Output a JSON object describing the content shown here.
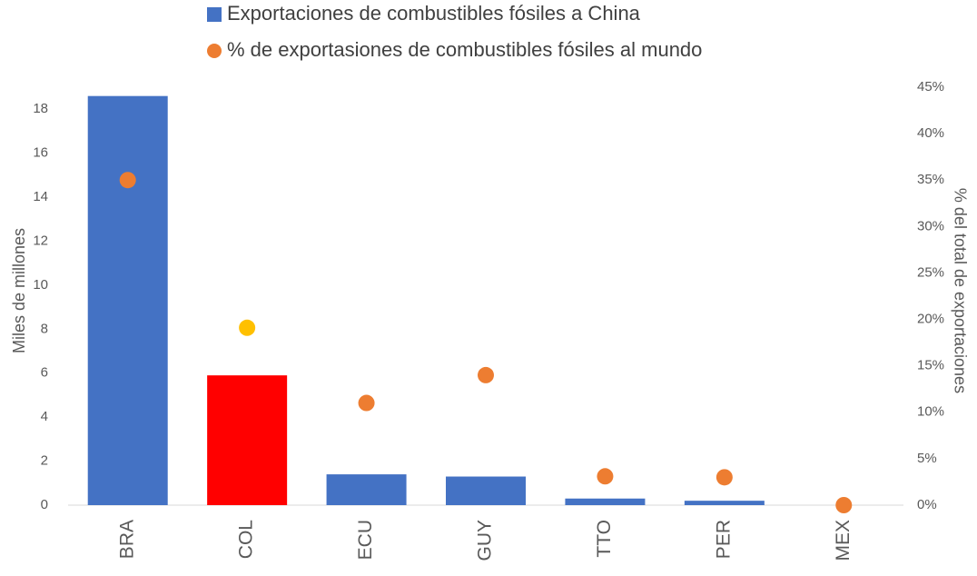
{
  "chart_data": {
    "type": "bar",
    "categories": [
      "BRA",
      "COL",
      "ECU",
      "GUY",
      "TTO",
      "PER",
      "MEX"
    ],
    "series": [
      {
        "name": "Exportaciones de combustibles fósiles a China",
        "type": "bar",
        "color": "#4472c4",
        "colors": [
          "#4472c4",
          "#ff0000",
          "#4472c4",
          "#4472c4",
          "#4472c4",
          "#4472c4",
          "#4472c4"
        ],
        "values": [
          18.6,
          5.9,
          1.4,
          1.3,
          0.3,
          0.2,
          0
        ]
      },
      {
        "name": "% de exportasiones de combustibles fósiles al mundo",
        "type": "scatter",
        "axis": "y2",
        "color": "#ed7d31",
        "colors": [
          "#ed7d31",
          "#ffc000",
          "#ed7d31",
          "#ed7d31",
          "#ed7d31",
          "#ed7d31",
          "#ed7d31"
        ],
        "values": [
          35,
          19.1,
          11,
          14,
          3.1,
          3,
          0
        ]
      }
    ],
    "ylabel": "Miles de millones",
    "y2label": "% del total de exportaciones",
    "ylim": [
      0,
      19
    ],
    "yticks": [
      0,
      2,
      4,
      6,
      8,
      10,
      12,
      14,
      16,
      18
    ],
    "y2lim": [
      0,
      45
    ],
    "y2ticks": [
      {
        "value": 0,
        "label": "0%"
      },
      {
        "value": 5,
        "label": "5%"
      },
      {
        "value": 10,
        "label": "10%"
      },
      {
        "value": 15,
        "label": "15%"
      },
      {
        "value": 20,
        "label": "20%"
      },
      {
        "value": 25,
        "label": "25%"
      },
      {
        "value": 30,
        "label": "30%"
      },
      {
        "value": 35,
        "label": "35%"
      },
      {
        "value": 40,
        "label": "40%"
      },
      {
        "value": 45,
        "label": "45%"
      }
    ],
    "legend": "top",
    "grid": false
  }
}
